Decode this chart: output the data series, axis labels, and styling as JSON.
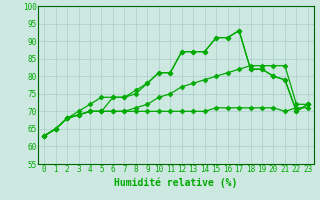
{
  "xlabel": "Humidité relative (%)",
  "bg_color": "#cce8e0",
  "grid_color": "#aacccc",
  "line_color": "#00aa00",
  "ylim": [
    55,
    100
  ],
  "xlim": [
    -0.5,
    23.5
  ],
  "yticks": [
    55,
    60,
    65,
    70,
    75,
    80,
    85,
    90,
    95,
    100
  ],
  "xticks": [
    0,
    1,
    2,
    3,
    4,
    5,
    6,
    7,
    8,
    9,
    10,
    11,
    12,
    13,
    14,
    15,
    16,
    17,
    18,
    19,
    20,
    21,
    22,
    23
  ],
  "series": [
    [
      63,
      65,
      68,
      69,
      70,
      70,
      70,
      70,
      70,
      70,
      70,
      70,
      70,
      70,
      70,
      71,
      71,
      71,
      71,
      71,
      71,
      70,
      71,
      71
    ],
    [
      63,
      65,
      68,
      69,
      70,
      70,
      70,
      70,
      71,
      72,
      74,
      75,
      77,
      78,
      79,
      80,
      81,
      82,
      83,
      83,
      83,
      83,
      72,
      72
    ],
    [
      63,
      65,
      68,
      69,
      70,
      70,
      74,
      74,
      76,
      78,
      81,
      81,
      87,
      87,
      87,
      91,
      91,
      93,
      82,
      82,
      80,
      79,
      70,
      72
    ],
    [
      63,
      65,
      68,
      70,
      72,
      74,
      74,
      74,
      75,
      78,
      81,
      81,
      87,
      87,
      87,
      91,
      91,
      93,
      82,
      82,
      80,
      79,
      70,
      72
    ]
  ],
  "marker": "D",
  "markersize": 2.5,
  "linewidth": 0.9,
  "xlabel_fontsize": 7,
  "tick_fontsize": 5.5,
  "spine_color": "#006600"
}
